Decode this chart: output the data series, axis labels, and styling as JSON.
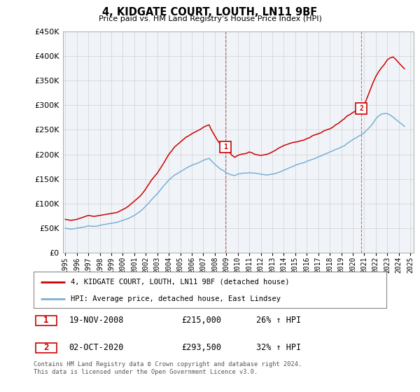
{
  "title": "4, KIDGATE COURT, LOUTH, LN11 9BF",
  "subtitle": "Price paid vs. HM Land Registry's House Price Index (HPI)",
  "legend_line1": "4, KIDGATE COURT, LOUTH, LN11 9BF (detached house)",
  "legend_line2": "HPI: Average price, detached house, East Lindsey",
  "annotation1_date": "19-NOV-2008",
  "annotation1_price": "£215,000",
  "annotation1_hpi": "26% ↑ HPI",
  "annotation2_date": "02-OCT-2020",
  "annotation2_price": "£293,500",
  "annotation2_hpi": "32% ↑ HPI",
  "footnote": "Contains HM Land Registry data © Crown copyright and database right 2024.\nThis data is licensed under the Open Government Licence v3.0.",
  "red_color": "#cc0000",
  "blue_color": "#7ab0d4",
  "ylim_min": 0,
  "ylim_max": 450000,
  "yticks": [
    0,
    50000,
    100000,
    150000,
    200000,
    250000,
    300000,
    350000,
    400000,
    450000
  ],
  "red_x": [
    1995.0,
    1995.25,
    1995.5,
    1995.75,
    1996.0,
    1996.25,
    1996.5,
    1996.75,
    1997.0,
    1997.25,
    1997.5,
    1997.75,
    1998.0,
    1998.25,
    1998.5,
    1998.75,
    1999.0,
    1999.25,
    1999.5,
    1999.75,
    2000.0,
    2000.25,
    2000.5,
    2000.75,
    2001.0,
    2001.25,
    2001.5,
    2001.75,
    2002.0,
    2002.25,
    2002.5,
    2002.75,
    2003.0,
    2003.25,
    2003.5,
    2003.75,
    2004.0,
    2004.25,
    2004.5,
    2004.75,
    2005.0,
    2005.25,
    2005.5,
    2005.75,
    2006.0,
    2006.25,
    2006.5,
    2006.75,
    2007.0,
    2007.25,
    2007.5,
    2007.75,
    2008.0,
    2008.25,
    2008.5,
    2008.75,
    2008.9,
    2009.0,
    2009.25,
    2009.5,
    2009.75,
    2010.0,
    2010.25,
    2010.5,
    2010.75,
    2011.0,
    2011.25,
    2011.5,
    2011.75,
    2012.0,
    2012.25,
    2012.5,
    2012.75,
    2013.0,
    2013.25,
    2013.5,
    2013.75,
    2014.0,
    2014.25,
    2014.5,
    2014.75,
    2015.0,
    2015.25,
    2015.5,
    2015.75,
    2016.0,
    2016.25,
    2016.5,
    2016.75,
    2017.0,
    2017.25,
    2017.5,
    2017.75,
    2018.0,
    2018.25,
    2018.5,
    2018.75,
    2019.0,
    2019.25,
    2019.5,
    2019.75,
    2020.0,
    2020.25,
    2020.5,
    2020.75,
    2021.0,
    2021.25,
    2021.5,
    2021.75,
    2022.0,
    2022.25,
    2022.5,
    2022.75,
    2023.0,
    2023.25,
    2023.5,
    2023.75,
    2024.0,
    2024.25,
    2024.5
  ],
  "red_y": [
    68000,
    67000,
    66000,
    67000,
    68000,
    70000,
    72000,
    74000,
    76000,
    75000,
    74000,
    75000,
    76000,
    77000,
    78000,
    79000,
    80000,
    81000,
    82000,
    85000,
    88000,
    91000,
    95000,
    100000,
    105000,
    110000,
    115000,
    122000,
    130000,
    139000,
    148000,
    155000,
    162000,
    171000,
    180000,
    190000,
    200000,
    207000,
    215000,
    220000,
    225000,
    230000,
    235000,
    238000,
    242000,
    245000,
    248000,
    251000,
    255000,
    258000,
    260000,
    248000,
    238000,
    228000,
    220000,
    217000,
    215000,
    213000,
    205000,
    198000,
    194000,
    198000,
    200000,
    201000,
    202000,
    205000,
    203000,
    200000,
    199000,
    198000,
    199000,
    200000,
    202000,
    205000,
    208000,
    212000,
    215000,
    218000,
    220000,
    222000,
    224000,
    225000,
    226000,
    228000,
    229000,
    232000,
    234000,
    238000,
    240000,
    242000,
    244000,
    248000,
    250000,
    252000,
    255000,
    260000,
    263000,
    268000,
    272000,
    278000,
    281000,
    285000,
    288000,
    292000,
    293500,
    300000,
    315000,
    330000,
    345000,
    358000,
    368000,
    376000,
    383000,
    392000,
    396000,
    398000,
    393000,
    386000,
    380000,
    374000
  ],
  "blue_x": [
    1995.0,
    1995.25,
    1995.5,
    1995.75,
    1996.0,
    1996.25,
    1996.5,
    1996.75,
    1997.0,
    1997.25,
    1997.5,
    1997.75,
    1998.0,
    1998.25,
    1998.5,
    1998.75,
    1999.0,
    1999.25,
    1999.5,
    1999.75,
    2000.0,
    2000.25,
    2000.5,
    2000.75,
    2001.0,
    2001.25,
    2001.5,
    2001.75,
    2002.0,
    2002.25,
    2002.5,
    2002.75,
    2003.0,
    2003.25,
    2003.5,
    2003.75,
    2004.0,
    2004.25,
    2004.5,
    2004.75,
    2005.0,
    2005.25,
    2005.5,
    2005.75,
    2006.0,
    2006.25,
    2006.5,
    2006.75,
    2007.0,
    2007.25,
    2007.5,
    2007.75,
    2008.0,
    2008.25,
    2008.5,
    2008.75,
    2009.0,
    2009.25,
    2009.5,
    2009.75,
    2010.0,
    2010.25,
    2010.5,
    2010.75,
    2011.0,
    2011.25,
    2011.5,
    2011.75,
    2012.0,
    2012.25,
    2012.5,
    2012.75,
    2013.0,
    2013.25,
    2013.5,
    2013.75,
    2014.0,
    2014.25,
    2014.5,
    2014.75,
    2015.0,
    2015.25,
    2015.5,
    2015.75,
    2016.0,
    2016.25,
    2016.5,
    2016.75,
    2017.0,
    2017.25,
    2017.5,
    2017.75,
    2018.0,
    2018.25,
    2018.5,
    2018.75,
    2019.0,
    2019.25,
    2019.5,
    2019.75,
    2020.0,
    2020.25,
    2020.5,
    2020.75,
    2021.0,
    2021.25,
    2021.5,
    2021.75,
    2022.0,
    2022.25,
    2022.5,
    2022.75,
    2023.0,
    2023.25,
    2023.5,
    2023.75,
    2024.0,
    2024.25,
    2024.5
  ],
  "blue_y": [
    50000,
    49000,
    48000,
    49000,
    50000,
    51000,
    52000,
    53000,
    55000,
    54000,
    54000,
    54000,
    56000,
    57000,
    58000,
    59000,
    60000,
    61000,
    62000,
    64000,
    66000,
    68000,
    70000,
    73000,
    76000,
    80000,
    84000,
    89000,
    95000,
    101000,
    108000,
    114000,
    120000,
    127000,
    135000,
    141000,
    148000,
    153000,
    158000,
    161000,
    165000,
    168000,
    172000,
    175000,
    178000,
    180000,
    182000,
    185000,
    188000,
    190000,
    192000,
    186000,
    180000,
    175000,
    170000,
    167000,
    163000,
    160000,
    158000,
    157000,
    160000,
    161000,
    162000,
    162000,
    163000,
    162000,
    162000,
    161000,
    160000,
    159000,
    158000,
    159000,
    160000,
    161000,
    163000,
    165000,
    168000,
    170000,
    173000,
    175000,
    178000,
    180000,
    182000,
    183000,
    186000,
    188000,
    190000,
    192000,
    195000,
    197000,
    200000,
    202000,
    205000,
    207000,
    210000,
    212000,
    215000,
    217000,
    222000,
    226000,
    230000,
    233000,
    237000,
    240000,
    244000,
    250000,
    256000,
    263000,
    272000,
    278000,
    282000,
    283000,
    283000,
    280000,
    276000,
    271000,
    266000,
    262000,
    257000
  ],
  "ann1_x": 2008.9,
  "ann1_y": 215000,
  "ann1_label": "1",
  "ann2_x": 2020.75,
  "ann2_y": 293500,
  "ann2_label": "2",
  "xlim_min": 1994.8,
  "xlim_max": 2025.3,
  "xticks": [
    1995,
    1996,
    1997,
    1998,
    1999,
    2000,
    2001,
    2002,
    2003,
    2004,
    2005,
    2006,
    2007,
    2008,
    2009,
    2010,
    2011,
    2012,
    2013,
    2014,
    2015,
    2016,
    2017,
    2018,
    2019,
    2020,
    2021,
    2022,
    2023,
    2024,
    2025
  ]
}
